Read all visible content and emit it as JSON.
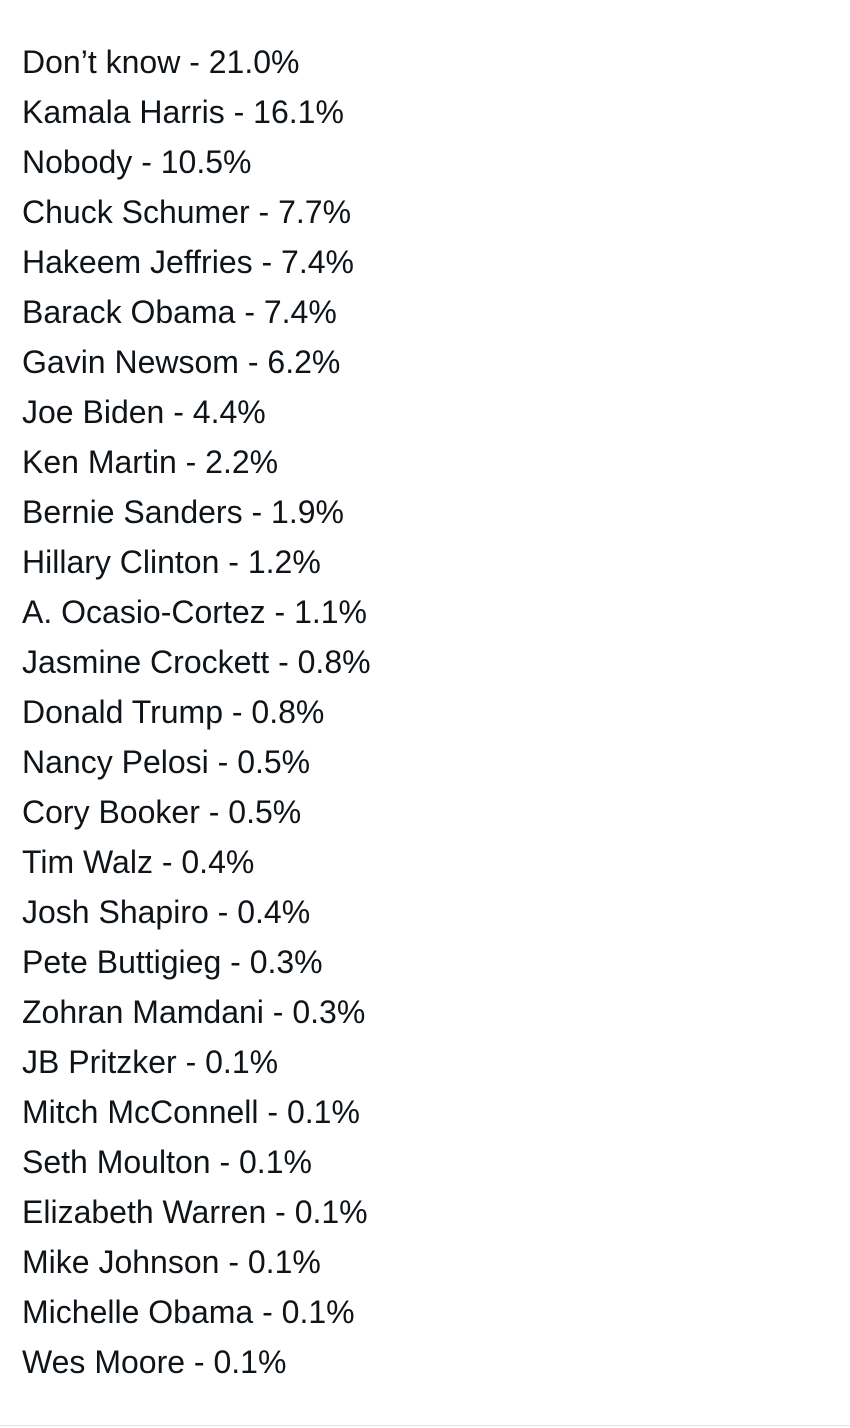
{
  "items": [
    "Don’t know - 21.0%",
    "Kamala Harris - 16.1%",
    "Nobody - 10.5%",
    "Chuck Schumer - 7.7%",
    "Hakeem Jeffries - 7.4%",
    "Barack Obama - 7.4%",
    "Gavin Newsom - 6.2%",
    "Joe Biden - 4.4%",
    "Ken Martin - 2.2%",
    "Bernie Sanders - 1.9%",
    "Hillary Clinton - 1.2%",
    "A. Ocasio-Cortez - 1.1%",
    "Jasmine Crockett - 0.8%",
    "Donald Trump - 0.8%",
    "Nancy Pelosi - 0.5%",
    "Cory Booker - 0.5%",
    "Tim Walz - 0.4%",
    "Josh Shapiro - 0.4%",
    "Pete Buttigieg - 0.3%",
    "Zohran Mamdani - 0.3%",
    "JB Pritzker - 0.1%",
    "Mitch McConnell - 0.1%",
    "Seth Moulton - 0.1%",
    "Elizabeth Warren - 0.1%",
    "Mike Johnson - 0.1%",
    "Michelle Obama - 0.1%",
    "Wes Moore - 0.1%"
  ]
}
